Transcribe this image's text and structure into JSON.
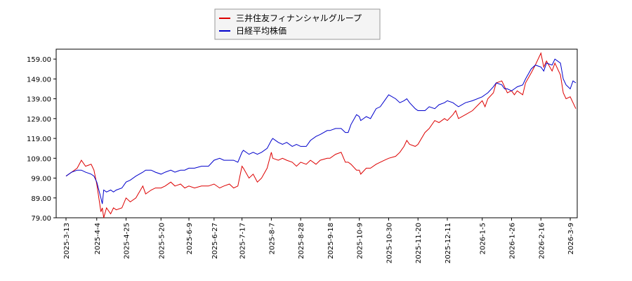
{
  "chart_data": {
    "type": "line",
    "title": "",
    "xlabel": "",
    "ylabel": "",
    "ylim": [
      79,
      164
    ],
    "yticks": [
      "79.00",
      "89.00",
      "99.00",
      "109.00",
      "119.00",
      "129.00",
      "139.00",
      "149.00",
      "159.00"
    ],
    "xticks": [
      "2025-3-13",
      "2025-4-4",
      "2025-4-25",
      "2025-5-20",
      "2025-6-9",
      "2025-6-27",
      "2025-7-17",
      "2025-8-7",
      "2025-8-28",
      "2025-9-18",
      "2025-10-9",
      "2025-10-30",
      "2025-11-20",
      "2025-12-11",
      "2026-1-5",
      "2026-1-26",
      "2026-2-16",
      "2026-3-9"
    ],
    "legend_position": "top-center",
    "grid": false,
    "series": [
      {
        "name": "三井住友フィナンシャルグループ",
        "color": "#dd0000",
        "points": [
          [
            "2025-03-13",
            100
          ],
          [
            "2025-03-17",
            102
          ],
          [
            "2025-03-21",
            104
          ],
          [
            "2025-03-24",
            108
          ],
          [
            "2025-03-27",
            105
          ],
          [
            "2025-03-31",
            106
          ],
          [
            "2025-04-02",
            103
          ],
          [
            "2025-04-04",
            96
          ],
          [
            "2025-04-07",
            82
          ],
          [
            "2025-04-08",
            84
          ],
          [
            "2025-04-09",
            79
          ],
          [
            "2025-04-11",
            84
          ],
          [
            "2025-04-14",
            81
          ],
          [
            "2025-04-16",
            84
          ],
          [
            "2025-04-18",
            83
          ],
          [
            "2025-04-22",
            84
          ],
          [
            "2025-04-25",
            89
          ],
          [
            "2025-04-28",
            87
          ],
          [
            "2025-05-02",
            89
          ],
          [
            "2025-05-07",
            95
          ],
          [
            "2025-05-09",
            91
          ],
          [
            "2025-05-13",
            93
          ],
          [
            "2025-05-16",
            94
          ],
          [
            "2025-05-20",
            94
          ],
          [
            "2025-05-23",
            95
          ],
          [
            "2025-05-27",
            97
          ],
          [
            "2025-05-30",
            95
          ],
          [
            "2025-06-03",
            96
          ],
          [
            "2025-06-06",
            94
          ],
          [
            "2025-06-09",
            95
          ],
          [
            "2025-06-13",
            94
          ],
          [
            "2025-06-18",
            95
          ],
          [
            "2025-06-23",
            95
          ],
          [
            "2025-06-27",
            96
          ],
          [
            "2025-07-01",
            94
          ],
          [
            "2025-07-04",
            95
          ],
          [
            "2025-07-08",
            96
          ],
          [
            "2025-07-11",
            94
          ],
          [
            "2025-07-14",
            95
          ],
          [
            "2025-07-17",
            105
          ],
          [
            "2025-07-18",
            104
          ],
          [
            "2025-07-22",
            99
          ],
          [
            "2025-07-25",
            101
          ],
          [
            "2025-07-28",
            97
          ],
          [
            "2025-07-31",
            99
          ],
          [
            "2025-08-04",
            104
          ],
          [
            "2025-08-07",
            112
          ],
          [
            "2025-08-08",
            109
          ],
          [
            "2025-08-12",
            108
          ],
          [
            "2025-08-15",
            109
          ],
          [
            "2025-08-18",
            108
          ],
          [
            "2025-08-22",
            107
          ],
          [
            "2025-08-25",
            105
          ],
          [
            "2025-08-28",
            107
          ],
          [
            "2025-09-01",
            106
          ],
          [
            "2025-09-04",
            108
          ],
          [
            "2025-09-08",
            106
          ],
          [
            "2025-09-11",
            108
          ],
          [
            "2025-09-16",
            109
          ],
          [
            "2025-09-18",
            109
          ],
          [
            "2025-09-22",
            111
          ],
          [
            "2025-09-26",
            112
          ],
          [
            "2025-09-29",
            107
          ],
          [
            "2025-10-01",
            107
          ],
          [
            "2025-10-03",
            106
          ],
          [
            "2025-10-07",
            103
          ],
          [
            "2025-10-09",
            103
          ],
          [
            "2025-10-10",
            101
          ],
          [
            "2025-10-14",
            104
          ],
          [
            "2025-10-17",
            104
          ],
          [
            "2025-10-21",
            106
          ],
          [
            "2025-10-24",
            107
          ],
          [
            "2025-10-27",
            108
          ],
          [
            "2025-10-30",
            109
          ],
          [
            "2025-11-04",
            110
          ],
          [
            "2025-11-07",
            112
          ],
          [
            "2025-11-10",
            115
          ],
          [
            "2025-11-12",
            118
          ],
          [
            "2025-11-14",
            116
          ],
          [
            "2025-11-18",
            115
          ],
          [
            "2025-11-20",
            116
          ],
          [
            "2025-11-25",
            122
          ],
          [
            "2025-11-28",
            124
          ],
          [
            "2025-12-02",
            128
          ],
          [
            "2025-12-05",
            127
          ],
          [
            "2025-12-09",
            129
          ],
          [
            "2025-12-11",
            128
          ],
          [
            "2025-12-15",
            131
          ],
          [
            "2025-12-17",
            133
          ],
          [
            "2025-12-19",
            129
          ],
          [
            "2025-12-24",
            131
          ],
          [
            "2025-12-29",
            133
          ],
          [
            "2026-01-05",
            138
          ],
          [
            "2026-01-07",
            135
          ],
          [
            "2026-01-09",
            139
          ],
          [
            "2026-01-13",
            142
          ],
          [
            "2026-01-15",
            147
          ],
          [
            "2026-01-19",
            148
          ],
          [
            "2026-01-21",
            145
          ],
          [
            "2026-01-23",
            142
          ],
          [
            "2026-01-26",
            143
          ],
          [
            "2026-01-28",
            141
          ],
          [
            "2026-01-30",
            143
          ],
          [
            "2026-02-03",
            141
          ],
          [
            "2026-02-05",
            147
          ],
          [
            "2026-02-09",
            152
          ],
          [
            "2026-02-12",
            156
          ],
          [
            "2026-02-16",
            162
          ],
          [
            "2026-02-18",
            155
          ],
          [
            "2026-02-20",
            158
          ],
          [
            "2026-02-24",
            153
          ],
          [
            "2026-02-26",
            157
          ],
          [
            "2026-03-02",
            151
          ],
          [
            "2026-03-04",
            142
          ],
          [
            "2026-03-06",
            139
          ],
          [
            "2026-03-09",
            140
          ],
          [
            "2026-03-11",
            137
          ],
          [
            "2026-03-13",
            134
          ]
        ]
      },
      {
        "name": "日経平均株価",
        "color": "#0000cc",
        "points": [
          [
            "2025-03-13",
            100
          ],
          [
            "2025-03-17",
            102
          ],
          [
            "2025-03-21",
            103
          ],
          [
            "2025-03-24",
            103
          ],
          [
            "2025-03-27",
            102
          ],
          [
            "2025-03-31",
            101
          ],
          [
            "2025-04-02",
            100
          ],
          [
            "2025-04-04",
            97
          ],
          [
            "2025-04-07",
            89
          ],
          [
            "2025-04-08",
            86
          ],
          [
            "2025-04-09",
            93
          ],
          [
            "2025-04-11",
            92
          ],
          [
            "2025-04-14",
            93
          ],
          [
            "2025-04-16",
            92
          ],
          [
            "2025-04-18",
            93
          ],
          [
            "2025-04-22",
            94
          ],
          [
            "2025-04-25",
            97
          ],
          [
            "2025-04-28",
            98
          ],
          [
            "2025-05-02",
            100
          ],
          [
            "2025-05-07",
            102
          ],
          [
            "2025-05-09",
            103
          ],
          [
            "2025-05-13",
            103
          ],
          [
            "2025-05-16",
            102
          ],
          [
            "2025-05-20",
            101
          ],
          [
            "2025-05-23",
            102
          ],
          [
            "2025-05-27",
            103
          ],
          [
            "2025-05-30",
            102
          ],
          [
            "2025-06-03",
            103
          ],
          [
            "2025-06-06",
            103
          ],
          [
            "2025-06-09",
            104
          ],
          [
            "2025-06-13",
            104
          ],
          [
            "2025-06-18",
            105
          ],
          [
            "2025-06-23",
            105
          ],
          [
            "2025-06-27",
            108
          ],
          [
            "2025-07-01",
            109
          ],
          [
            "2025-07-04",
            108
          ],
          [
            "2025-07-08",
            108
          ],
          [
            "2025-07-11",
            108
          ],
          [
            "2025-07-14",
            107
          ],
          [
            "2025-07-17",
            112
          ],
          [
            "2025-07-18",
            113
          ],
          [
            "2025-07-22",
            111
          ],
          [
            "2025-07-25",
            112
          ],
          [
            "2025-07-28",
            111
          ],
          [
            "2025-07-31",
            112
          ],
          [
            "2025-08-04",
            114
          ],
          [
            "2025-08-07",
            118
          ],
          [
            "2025-08-08",
            119
          ],
          [
            "2025-08-12",
            117
          ],
          [
            "2025-08-15",
            116
          ],
          [
            "2025-08-18",
            117
          ],
          [
            "2025-08-22",
            115
          ],
          [
            "2025-08-25",
            116
          ],
          [
            "2025-08-28",
            115
          ],
          [
            "2025-09-01",
            115
          ],
          [
            "2025-09-04",
            118
          ],
          [
            "2025-09-08",
            120
          ],
          [
            "2025-09-11",
            121
          ],
          [
            "2025-09-16",
            123
          ],
          [
            "2025-09-18",
            123
          ],
          [
            "2025-09-22",
            124
          ],
          [
            "2025-09-26",
            124
          ],
          [
            "2025-09-29",
            122
          ],
          [
            "2025-10-01",
            122
          ],
          [
            "2025-10-03",
            126
          ],
          [
            "2025-10-07",
            131
          ],
          [
            "2025-10-09",
            130
          ],
          [
            "2025-10-10",
            128
          ],
          [
            "2025-10-14",
            130
          ],
          [
            "2025-10-17",
            129
          ],
          [
            "2025-10-21",
            134
          ],
          [
            "2025-10-24",
            135
          ],
          [
            "2025-10-27",
            138
          ],
          [
            "2025-10-30",
            141
          ],
          [
            "2025-11-04",
            139
          ],
          [
            "2025-11-07",
            137
          ],
          [
            "2025-11-10",
            138
          ],
          [
            "2025-11-12",
            139
          ],
          [
            "2025-11-14",
            137
          ],
          [
            "2025-11-18",
            134
          ],
          [
            "2025-11-20",
            133
          ],
          [
            "2025-11-25",
            133
          ],
          [
            "2025-11-28",
            135
          ],
          [
            "2025-12-02",
            134
          ],
          [
            "2025-12-05",
            136
          ],
          [
            "2025-12-09",
            137
          ],
          [
            "2025-12-11",
            138
          ],
          [
            "2025-12-15",
            137
          ],
          [
            "2025-12-17",
            136
          ],
          [
            "2025-12-19",
            135
          ],
          [
            "2025-12-24",
            137
          ],
          [
            "2025-12-29",
            138
          ],
          [
            "2026-01-05",
            140
          ],
          [
            "2026-01-07",
            141
          ],
          [
            "2026-01-09",
            142
          ],
          [
            "2026-01-13",
            145
          ],
          [
            "2026-01-15",
            147
          ],
          [
            "2026-01-19",
            146
          ],
          [
            "2026-01-21",
            144
          ],
          [
            "2026-01-23",
            144
          ],
          [
            "2026-01-26",
            143
          ],
          [
            "2026-01-28",
            144
          ],
          [
            "2026-01-30",
            145
          ],
          [
            "2026-02-03",
            146
          ],
          [
            "2026-02-05",
            149
          ],
          [
            "2026-02-09",
            154
          ],
          [
            "2026-02-12",
            156
          ],
          [
            "2026-02-16",
            155
          ],
          [
            "2026-02-18",
            153
          ],
          [
            "2026-02-20",
            157
          ],
          [
            "2026-02-24",
            156
          ],
          [
            "2026-02-26",
            159
          ],
          [
            "2026-03-02",
            157
          ],
          [
            "2026-03-04",
            149
          ],
          [
            "2026-03-06",
            146
          ],
          [
            "2026-03-09",
            144
          ],
          [
            "2026-03-11",
            148
          ],
          [
            "2026-03-13",
            147
          ]
        ]
      }
    ]
  }
}
